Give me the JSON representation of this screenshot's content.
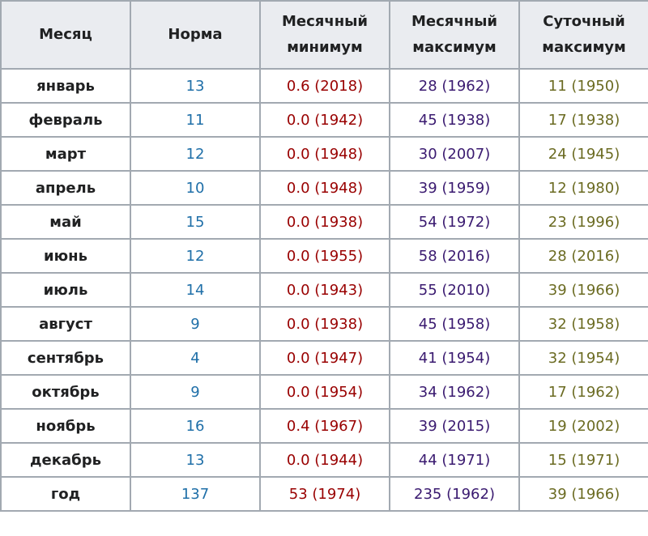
{
  "table": {
    "header": [
      "Месяц",
      "Норма",
      "Месячный минимум",
      "Месячный максимум",
      "Суточный максимум"
    ],
    "rows": [
      [
        "январь",
        "13",
        "0.6 (2018)",
        "28 (1962)",
        "11 (1950)"
      ],
      [
        "февраль",
        "11",
        "0.0 (1942)",
        "45 (1938)",
        "17 (1938)"
      ],
      [
        "март",
        "12",
        "0.0 (1948)",
        "30 (2007)",
        "24 (1945)"
      ],
      [
        "апрель",
        "10",
        "0.0 (1948)",
        "39 (1959)",
        "12 (1980)"
      ],
      [
        "май",
        "15",
        "0.0 (1938)",
        "54 (1972)",
        "23 (1996)"
      ],
      [
        "июнь",
        "12",
        "0.0 (1955)",
        "58 (2016)",
        "28 (2016)"
      ],
      [
        "июль",
        "14",
        "0.0 (1943)",
        "55 (2010)",
        "39 (1966)"
      ],
      [
        "август",
        "9",
        "0.0 (1938)",
        "45 (1958)",
        "32 (1958)"
      ],
      [
        "сентябрь",
        "4",
        "0.0 (1947)",
        "41 (1954)",
        "32 (1954)"
      ],
      [
        "октябрь",
        "9",
        "0.0 (1954)",
        "34 (1962)",
        "17 (1962)"
      ],
      [
        "ноябрь",
        "16",
        "0.4 (1967)",
        "39 (2015)",
        "19 (2002)"
      ],
      [
        "декабрь",
        "13",
        "0.0 (1944)",
        "44 (1971)",
        "15 (1971)"
      ],
      [
        "год",
        "137",
        "53 (1974)",
        "235 (1962)",
        "39 (1966)"
      ]
    ]
  }
}
